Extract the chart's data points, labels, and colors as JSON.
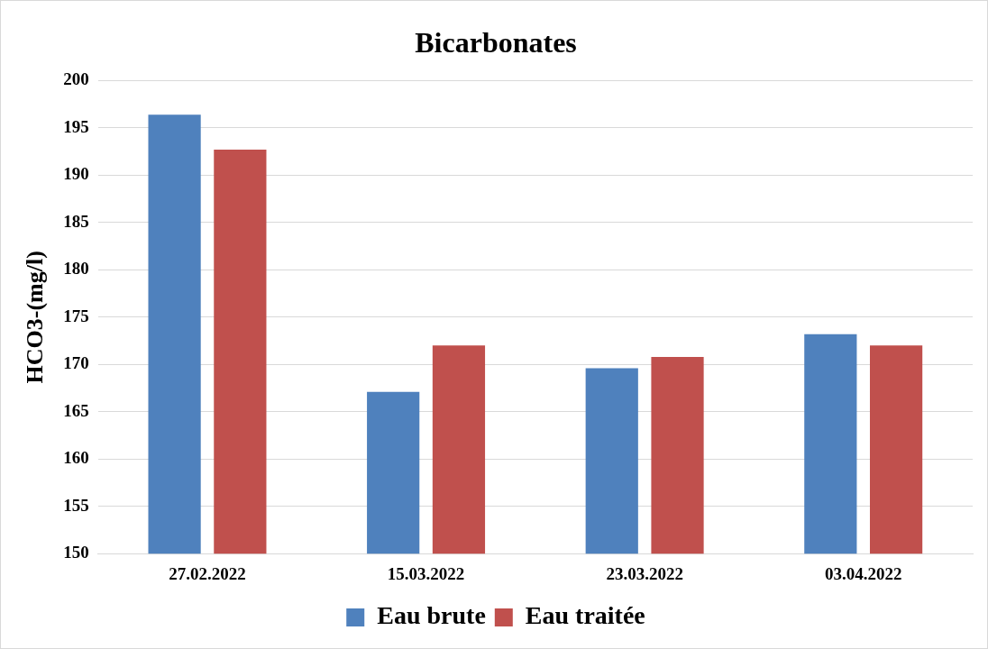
{
  "chart_data": {
    "type": "bar",
    "title": "Bicarbonates",
    "ylabel": "HCO3-(mg/l)",
    "categories": [
      "27.02.2022",
      "15.03.2022",
      "23.03.2022",
      "03.04.2022"
    ],
    "series": [
      {
        "name": "Eau brute",
        "color": "#4f81bd",
        "values": [
          196.4,
          167.1,
          169.6,
          173.2
        ]
      },
      {
        "name": "Eau traitée",
        "color": "#c0504d",
        "values": [
          192.7,
          172.0,
          170.8,
          172.0
        ]
      }
    ],
    "ylim": [
      150,
      200
    ],
    "yticks": [
      150,
      155,
      160,
      165,
      170,
      175,
      180,
      185,
      190,
      195,
      200
    ],
    "grid": "y",
    "legend": "bottom"
  }
}
